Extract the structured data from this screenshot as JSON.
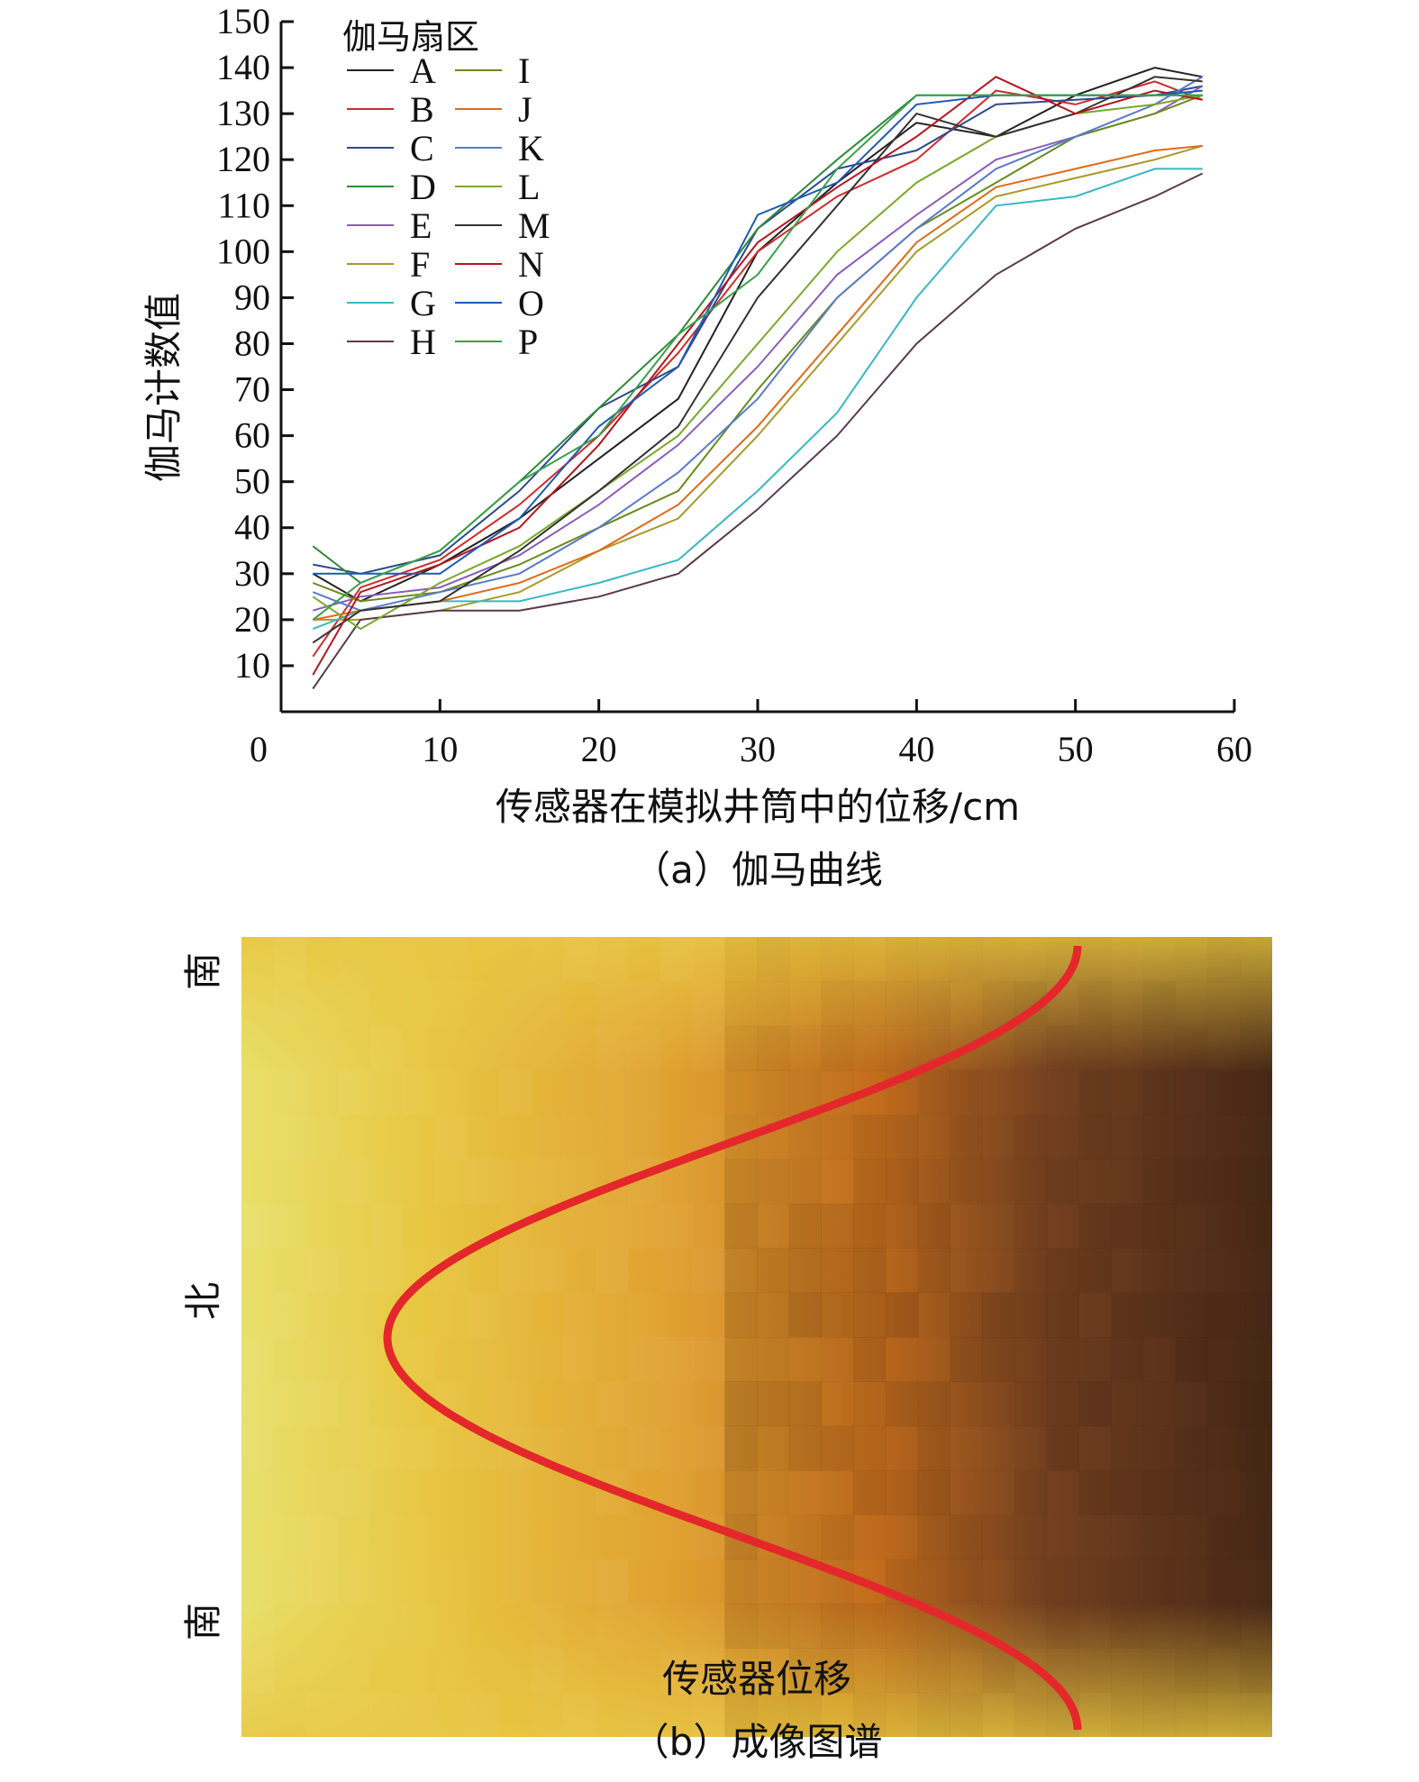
{
  "chart_data": [
    {
      "type": "line",
      "caption": "（a）伽马曲线",
      "xlabel": "传感器在模拟井筒中的位移/cm",
      "ylabel": "伽马计数值",
      "xlim": [
        0,
        60
      ],
      "ylim": [
        0,
        150
      ],
      "x_ticks": [
        "0",
        "10",
        "20",
        "30",
        "40",
        "50",
        "60"
      ],
      "y_ticks": [
        "10",
        "20",
        "30",
        "40",
        "50",
        "60",
        "70",
        "80",
        "90",
        "100",
        "110",
        "120",
        "130",
        "140",
        "150"
      ],
      "x_tick_values": [
        0,
        10,
        20,
        30,
        40,
        50,
        60
      ],
      "y_tick_values": [
        10,
        20,
        30,
        40,
        50,
        60,
        70,
        80,
        90,
        100,
        110,
        120,
        130,
        140,
        150
      ],
      "legend_title": "伽马扇区",
      "legend_position": "top-left",
      "x": [
        2,
        5,
        10,
        15,
        20,
        25,
        30,
        35,
        40,
        45,
        50,
        55,
        58
      ],
      "series": [
        {
          "name": "A",
          "color": "#222222",
          "values": [
            30,
            24,
            32,
            42,
            55,
            68,
            100,
            115,
            128,
            125,
            134,
            140,
            138
          ]
        },
        {
          "name": "B",
          "color": "#d22a2a",
          "values": [
            12,
            27,
            33,
            45,
            60,
            78,
            100,
            112,
            120,
            135,
            132,
            137,
            133
          ]
        },
        {
          "name": "C",
          "color": "#2d4a8c",
          "values": [
            32,
            30,
            34,
            48,
            66,
            75,
            105,
            118,
            122,
            132,
            133,
            134,
            136
          ]
        },
        {
          "name": "D",
          "color": "#2e8b3a",
          "values": [
            36,
            28,
            35,
            50,
            66,
            82,
            105,
            120,
            134,
            134,
            134,
            134,
            134
          ]
        },
        {
          "name": "E",
          "color": "#8a5cb8",
          "values": [
            22,
            25,
            27,
            34,
            45,
            58,
            75,
            95,
            108,
            120,
            125,
            130,
            136
          ]
        },
        {
          "name": "F",
          "color": "#a89a2a",
          "values": [
            20,
            20,
            22,
            26,
            35,
            42,
            60,
            80,
            100,
            112,
            116,
            120,
            123
          ]
        },
        {
          "name": "G",
          "color": "#3ab7c4",
          "values": [
            18,
            22,
            24,
            24,
            28,
            33,
            48,
            65,
            90,
            110,
            112,
            118,
            118
          ]
        },
        {
          "name": "H",
          "color": "#5a3a4a",
          "values": [
            5,
            20,
            22,
            22,
            25,
            30,
            44,
            60,
            80,
            95,
            105,
            112,
            117
          ]
        },
        {
          "name": "I",
          "color": "#6a8a1e",
          "values": [
            28,
            24,
            26,
            32,
            40,
            48,
            70,
            90,
            105,
            115,
            125,
            130,
            134
          ]
        },
        {
          "name": "J",
          "color": "#e06a1a",
          "values": [
            20,
            22,
            24,
            28,
            35,
            45,
            62,
            82,
            102,
            114,
            118,
            122,
            123
          ]
        },
        {
          "name": "K",
          "color": "#5a7ac8",
          "values": [
            26,
            22,
            26,
            30,
            40,
            52,
            68,
            90,
            105,
            118,
            125,
            132,
            138
          ]
        },
        {
          "name": "L",
          "color": "#7aa82a",
          "values": [
            25,
            18,
            28,
            36,
            48,
            60,
            80,
            100,
            115,
            125,
            130,
            132,
            134
          ]
        },
        {
          "name": "M",
          "color": "#333333",
          "values": [
            15,
            22,
            24,
            35,
            48,
            62,
            90,
            110,
            130,
            125,
            130,
            138,
            137
          ]
        },
        {
          "name": "N",
          "color": "#b4161e",
          "values": [
            8,
            26,
            32,
            40,
            58,
            80,
            102,
            114,
            125,
            138,
            130,
            135,
            133
          ]
        },
        {
          "name": "O",
          "color": "#1e5ab4",
          "values": [
            30,
            30,
            30,
            42,
            62,
            75,
            108,
            115,
            132,
            134,
            134,
            134,
            135
          ]
        },
        {
          "name": "P",
          "color": "#3aa04a",
          "values": [
            20,
            28,
            35,
            50,
            60,
            82,
            95,
            118,
            134,
            134,
            134,
            134,
            134
          ]
        }
      ]
    },
    {
      "type": "heatmap",
      "caption": "（b）成像图谱",
      "xlabel": "传感器位移",
      "row_labels": [
        "南",
        "北",
        "南"
      ],
      "colors": {
        "light": "#e8e06a",
        "mid": "#e0a030",
        "orange": "#d87020",
        "dark": "#4a2a18",
        "curve": "#e4272b"
      }
    }
  ]
}
